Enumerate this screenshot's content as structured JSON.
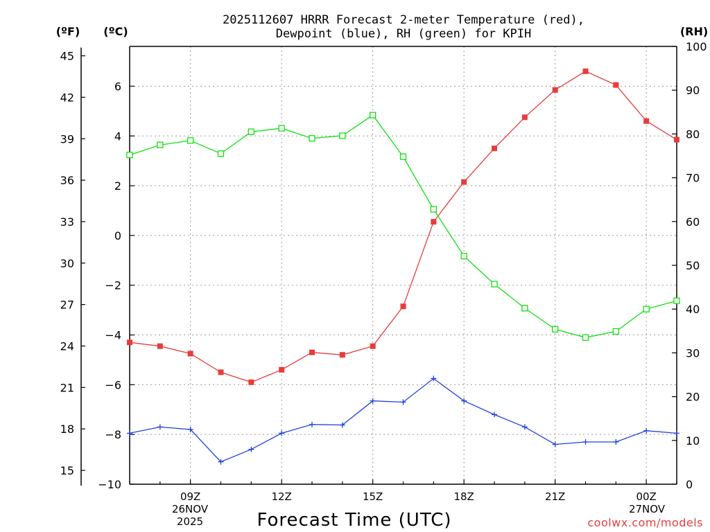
{
  "chart_data": {
    "type": "line",
    "title_line1": "2025112607 HRRR Forecast 2-meter Temperature (red),",
    "title_line2": "Dewpoint (blue), RH (green) for KPIH",
    "xlabel": "Forecast Time (UTC)",
    "unit_f": "(ºF)",
    "unit_c": "(ºC)",
    "unit_rh": "(RH)",
    "credit": "coolwx.com/models",
    "x_hours": [
      7,
      8,
      9,
      10,
      11,
      12,
      13,
      14,
      15,
      16,
      17,
      18,
      19,
      20,
      21,
      22,
      23,
      24,
      25
    ],
    "xlim": [
      7,
      25
    ],
    "ylim_c": [
      -10,
      7.6
    ],
    "ylim_rh": [
      0,
      100
    ],
    "f_ticks": [
      15,
      18,
      21,
      24,
      27,
      30,
      33,
      36,
      39,
      42,
      45
    ],
    "c_ticks": [
      -10,
      -8,
      -6,
      -4,
      -2,
      0,
      2,
      4,
      6
    ],
    "rh_ticks": [
      0,
      10,
      20,
      30,
      40,
      50,
      60,
      70,
      80,
      90,
      100
    ],
    "x_ticks": [
      {
        "hour": 9,
        "label": "09Z"
      },
      {
        "hour": 12,
        "label": "12Z"
      },
      {
        "hour": 15,
        "label": "15Z"
      },
      {
        "hour": 18,
        "label": "18Z"
      },
      {
        "hour": 21,
        "label": "21Z"
      },
      {
        "hour": 24,
        "label": "00Z"
      }
    ],
    "date1_line1": "26NOV",
    "date1_line2": "2025",
    "date2_line1": "27NOV",
    "series": [
      {
        "name": "Temperature",
        "axis": "celsius",
        "color": "#e83c3c",
        "marker": "filled-square",
        "values": [
          -4.3,
          -4.45,
          -4.75,
          -5.5,
          -5.9,
          -5.4,
          -4.7,
          -4.8,
          -4.45,
          -2.85,
          0.55,
          2.15,
          3.5,
          4.75,
          5.85,
          6.6,
          6.05,
          4.6,
          3.85
        ]
      },
      {
        "name": "Dewpoint",
        "axis": "celsius",
        "color": "#2040e0",
        "marker": "plus",
        "values": [
          -7.95,
          -7.7,
          -7.8,
          -9.1,
          -8.6,
          -7.95,
          -7.6,
          -7.62,
          -6.65,
          -6.7,
          -5.75,
          -6.65,
          -7.2,
          -7.7,
          -8.4,
          -8.3,
          -8.3,
          -7.85,
          -7.95
        ]
      },
      {
        "name": "RH",
        "axis": "rh",
        "color": "#10e010",
        "marker": "open-square",
        "values": [
          75.2,
          77.5,
          78.5,
          75.5,
          80.5,
          81.3,
          79.0,
          79.6,
          84.3,
          74.8,
          62.8,
          52.1,
          45.7,
          40.2,
          35.4,
          33.5,
          34.9,
          40.0,
          41.9
        ]
      }
    ]
  }
}
